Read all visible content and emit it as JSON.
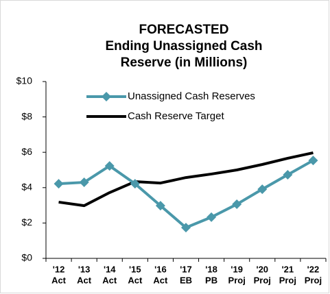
{
  "chart_data": {
    "type": "line",
    "title": [
      "FORECASTED",
      "Ending Unassigned Cash",
      "Reserve (in Millions)"
    ],
    "categories": [
      [
        "'12",
        "Act"
      ],
      [
        "'13",
        "Act"
      ],
      [
        "'14",
        "Act"
      ],
      [
        "'15",
        "Act"
      ],
      [
        "'16",
        "Act"
      ],
      [
        "'17",
        "EB"
      ],
      [
        "'18",
        "PB"
      ],
      [
        "'19",
        "Proj"
      ],
      [
        "'20",
        "Proj"
      ],
      [
        "'21",
        "Proj"
      ],
      [
        "'22",
        "Proj"
      ]
    ],
    "series": [
      {
        "name": "Unassigned Cash Reserves",
        "color": "#4a98aa",
        "marker": "diamond",
        "values": [
          4.22,
          4.3,
          5.23,
          4.22,
          2.98,
          1.74,
          2.33,
          3.06,
          3.91,
          4.73,
          5.54
        ]
      },
      {
        "name": "Cash Reserve Target",
        "color": "#000000",
        "marker": "none",
        "values": [
          3.18,
          2.98,
          3.72,
          4.34,
          4.26,
          4.57,
          4.77,
          5.0,
          5.31,
          5.66,
          5.97
        ]
      }
    ],
    "ylim": [
      0,
      10
    ],
    "yticks": [
      {
        "value": 0,
        "label": "$0"
      },
      {
        "value": 2,
        "label": "$2"
      },
      {
        "value": 4,
        "label": "$4"
      },
      {
        "value": 6,
        "label": "$6"
      },
      {
        "value": 8,
        "label": "$8"
      },
      {
        "value": 10,
        "label": "$10"
      }
    ],
    "grid": false
  }
}
